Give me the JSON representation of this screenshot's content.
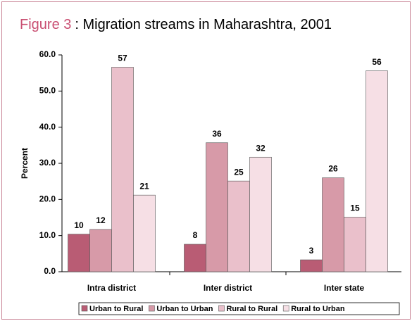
{
  "chart_data": {
    "type": "bar",
    "title_label": "Figure 3",
    "title": ": Migration streams in Maharashtra, 2001",
    "y_label": "Percent",
    "categories": [
      "Intra district",
      "Inter district",
      "Inter state"
    ],
    "series": [
      {
        "name": "Urban to Rural",
        "color": "#b95c74",
        "values": [
          10.4,
          7.6,
          3.3
        ],
        "value_labels": [
          "10",
          "8",
          "3"
        ]
      },
      {
        "name": "Urban to Urban",
        "color": "#d79aa8",
        "values": [
          11.7,
          35.7,
          26.0
        ],
        "value_labels": [
          "12",
          "36",
          "26"
        ]
      },
      {
        "name": "Rural to Rural",
        "color": "#eac0cb",
        "values": [
          56.6,
          25.1,
          15.1
        ],
        "value_labels": [
          "57",
          "25",
          "15"
        ]
      },
      {
        "name": "Rural to Urban",
        "color": "#f6dfe5",
        "values": [
          21.2,
          31.7,
          55.6
        ],
        "value_labels": [
          "21",
          "32",
          "56"
        ]
      }
    ],
    "ylim": [
      0,
      60
    ],
    "yticks": [
      {
        "value": 0,
        "label": "0.0"
      },
      {
        "value": 10,
        "label": "10.0"
      },
      {
        "value": 20,
        "label": "20.0"
      },
      {
        "value": 30,
        "label": "30.0"
      },
      {
        "value": 40,
        "label": "40.0"
      },
      {
        "value": 50,
        "label": "50.0"
      },
      {
        "value": 60,
        "label": "60.0"
      }
    ],
    "legend": "bottom"
  }
}
